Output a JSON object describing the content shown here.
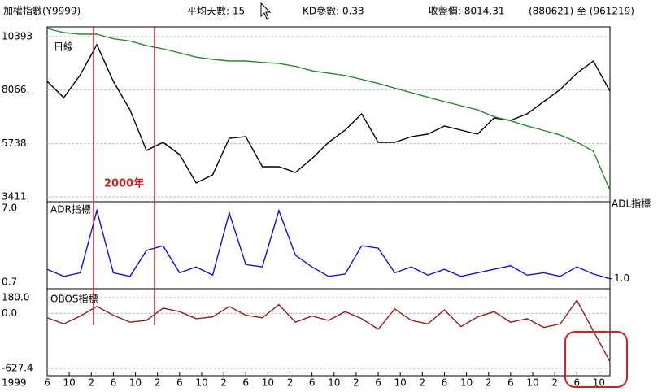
{
  "header": {
    "title": "加權指數(Y9999)",
    "items": [
      "平均天數: 15",
      "KD參數: 0.33",
      "收盤價: 8014.31",
      "(880621) 至 (961219)"
    ]
  },
  "chart_data": [
    {
      "type": "line",
      "annotation": "2000年",
      "x": [
        0,
        3,
        6,
        9,
        12,
        15,
        18,
        21,
        24,
        27,
        30,
        33,
        36,
        39,
        42,
        45,
        48,
        51,
        54,
        57,
        60,
        63,
        66,
        69,
        72,
        75,
        78,
        81,
        84,
        87,
        90,
        93,
        96,
        99,
        102
      ],
      "series": [
        {
          "name": "日線",
          "color": "#000000",
          "values": [
            8444,
            7735,
            8727,
            10039,
            8444,
            7203,
            5431,
            5786,
            5254,
            4014,
            4368,
            5963,
            6034,
            4723,
            4723,
            4475,
            5077,
            5786,
            6317,
            7026,
            5786,
            5786,
            6034,
            6140,
            6495,
            6317,
            6140,
            6849,
            6743,
            7026,
            7558,
            8089,
            8798,
            9330,
            8014
          ]
        },
        {
          "name": "ADL指標",
          "color": "#2a8a2a",
          "values": [
            10747,
            10570,
            10500,
            10500,
            10300,
            10200,
            10000,
            9860,
            9680,
            9500,
            9400,
            9330,
            9330,
            9270,
            9220,
            9100,
            8900,
            8800,
            8700,
            8530,
            8350,
            8150,
            7950,
            7750,
            7560,
            7380,
            7200,
            6900,
            6720,
            6500,
            6300,
            6100,
            5800,
            5400,
            3700
          ]
        }
      ],
      "xlim": [
        0,
        102
      ],
      "ylim": [
        3234,
        10818
      ],
      "yticks": [
        10393,
        {
          "value": 8066,
          "label": "8066."
        },
        {
          "value": 5738,
          "label": "5738."
        },
        {
          "value": 3411,
          "label": "3411."
        }
      ],
      "grid": true
    },
    {
      "type": "line",
      "x": [
        0,
        3,
        6,
        9,
        12,
        15,
        18,
        21,
        24,
        27,
        30,
        33,
        36,
        39,
        42,
        45,
        48,
        51,
        54,
        57,
        60,
        63,
        66,
        69,
        72,
        75,
        78,
        81,
        84,
        87,
        90,
        93,
        96,
        99,
        102
      ],
      "series": [
        {
          "name": "ADR指標",
          "color": "#1010e0",
          "values": [
            1.8,
            1.2,
            1.5,
            6.8,
            1.5,
            1.2,
            3.4,
            3.8,
            1.5,
            2.0,
            1.3,
            6.6,
            2.2,
            2.0,
            6.8,
            3.0,
            2.0,
            1.2,
            1.4,
            3.8,
            3.6,
            1.5,
            2.0,
            1.3,
            1.8,
            1.2,
            1.5,
            1.8,
            2.1,
            1.3,
            1.5,
            1.2,
            2.0,
            1.4,
            1.0
          ]
        }
      ],
      "xlim": [
        0,
        102
      ],
      "ylim": [
        0.7,
        7.0
      ],
      "yticks": [
        {
          "value": 7.0,
          "label": "7.0"
        },
        {
          "value": 0.7,
          "label": "0.7"
        }
      ],
      "y2lim": [
        0.7,
        7.0
      ],
      "y2ticks": [
        {
          "value": 1.0,
          "label": "1.0"
        }
      ],
      "grid": false
    },
    {
      "type": "line",
      "x": [
        0,
        3,
        6,
        9,
        12,
        15,
        18,
        21,
        24,
        27,
        30,
        33,
        36,
        39,
        42,
        45,
        48,
        51,
        54,
        57,
        60,
        63,
        66,
        69,
        72,
        75,
        78,
        81,
        84,
        87,
        90,
        93,
        96,
        99,
        102
      ],
      "series": [
        {
          "name": "OBOS指標",
          "color": "#a01818",
          "values": [
            -50,
            -120,
            -30,
            80,
            -20,
            -100,
            -80,
            60,
            20,
            -60,
            -40,
            80,
            -20,
            -50,
            100,
            -100,
            -30,
            -80,
            20,
            -60,
            -180,
            50,
            -80,
            -120,
            40,
            -150,
            -40,
            20,
            -100,
            -60,
            -160,
            -120,
            150,
            -200,
            -550
          ]
        }
      ],
      "xlim": [
        0,
        102
      ],
      "ylim": [
        -627.4,
        180
      ],
      "yticks": [
        {
          "value": 180,
          "label": "180.0"
        },
        {
          "value": 0,
          "label": "0.0"
        },
        {
          "value": -627.4,
          "label": "-627.4"
        }
      ],
      "x_start_label": "1999",
      "xticks": [
        {
          "value": 0,
          "label": "6"
        },
        {
          "value": 4,
          "label": "10"
        },
        {
          "value": 8,
          "label": "2"
        },
        {
          "value": 12,
          "label": "6"
        },
        {
          "value": 16,
          "label": "10"
        },
        {
          "value": 20,
          "label": "2"
        },
        {
          "value": 24,
          "label": "6"
        },
        {
          "value": 28,
          "label": "10"
        },
        {
          "value": 32,
          "label": "2"
        },
        {
          "value": 36,
          "label": "6"
        },
        {
          "value": 40,
          "label": "10"
        },
        {
          "value": 44,
          "label": "2"
        },
        {
          "value": 48,
          "label": "6"
        },
        {
          "value": 52,
          "label": "10"
        },
        {
          "value": 56,
          "label": "2"
        },
        {
          "value": 60,
          "label": "6"
        },
        {
          "value": 64,
          "label": "10"
        },
        {
          "value": 68,
          "label": "2"
        },
        {
          "value": 72,
          "label": "6"
        },
        {
          "value": 76,
          "label": "10"
        },
        {
          "value": 80,
          "label": "2"
        },
        {
          "value": 84,
          "label": "6"
        },
        {
          "value": 88,
          "label": "10"
        },
        {
          "value": 92,
          "label": "2"
        },
        {
          "value": 96,
          "label": "6"
        },
        {
          "value": 100,
          "label": "10"
        }
      ],
      "grid": true
    }
  ]
}
